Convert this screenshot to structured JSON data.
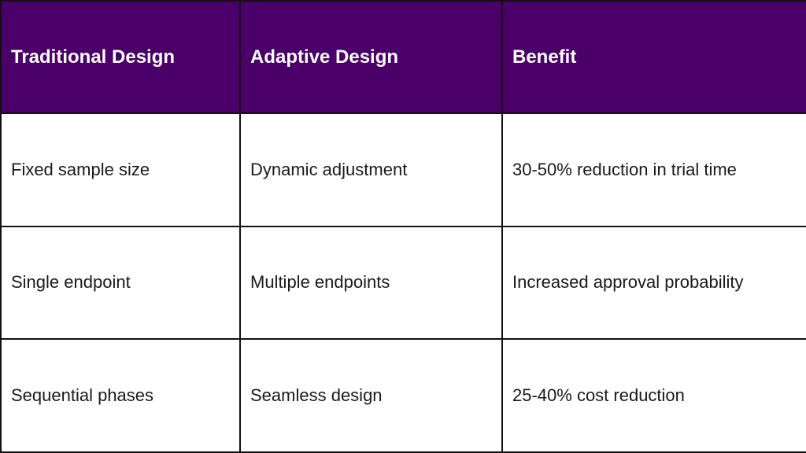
{
  "table": {
    "headers": [
      "Traditional Design",
      "Adaptive Design",
      "Benefit"
    ],
    "rows": [
      [
        "Fixed sample size",
        "Dynamic adjustment",
        "30-50% reduction in trial time"
      ],
      [
        "Single endpoint",
        "Multiple endpoints",
        "Increased approval probability"
      ],
      [
        "Sequential phases",
        "Seamless design",
        "25-40% cost reduction"
      ]
    ]
  },
  "colors": {
    "header_background": "#4a0068",
    "header_text": "#ffffff",
    "cell_text": "#1a1a1a",
    "border": "#111111"
  }
}
